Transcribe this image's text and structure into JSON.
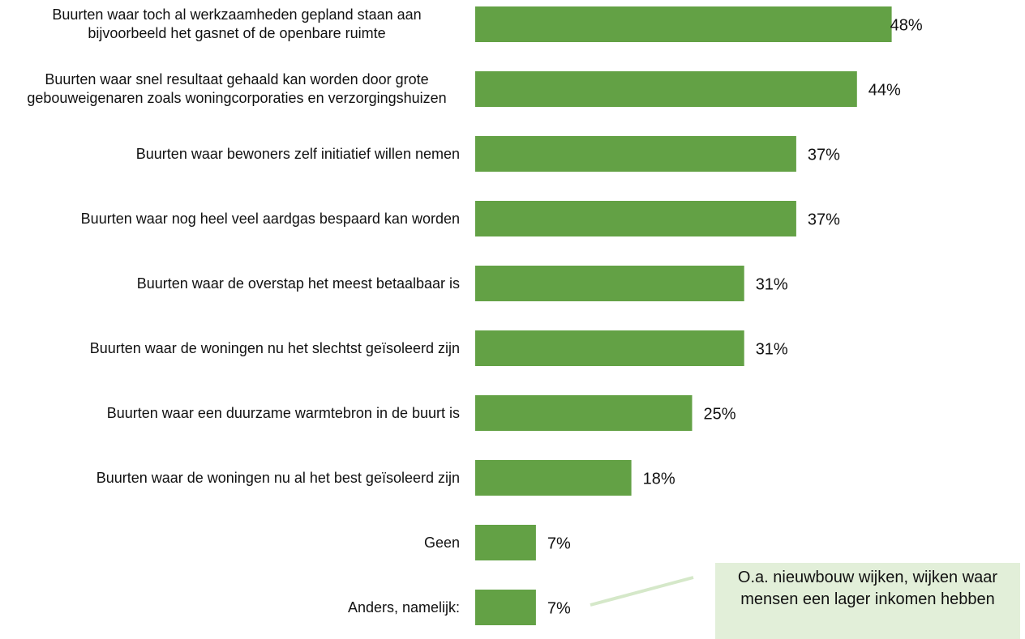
{
  "chart_data": {
    "type": "barh",
    "categories": [
      "Buurten waar toch al werkzaamheden gepland staan aan bijvoorbeeld het gasnet of de openbare ruimte",
      "Buurten waar snel resultaat gehaald kan worden door grote gebouweigenaren zoals woningcorporaties en verzorgingshuizen",
      "Buurten waar bewoners zelf initiatief willen nemen",
      "Buurten waar nog heel veel aardgas bespaard kan worden",
      "Buurten waar de overstap het meest betaalbaar is",
      "Buurten waar de woningen nu het slechtst geïsoleerd zijn",
      "Buurten waar een duurzame warmtebron in de buurt is",
      "Buurten waar de woningen nu al het best geïsoleerd zijn",
      "Geen",
      "Anders, namelijk:"
    ],
    "values": [
      48,
      44,
      37,
      37,
      31,
      31,
      25,
      18,
      7,
      7
    ],
    "value_labels": [
      "48%",
      "44%",
      "37%",
      "37%",
      "31%",
      "31%",
      "25%",
      "18%",
      "7%",
      "7%"
    ],
    "color": "#63a145",
    "xlim": [
      0,
      50
    ],
    "annotation": "O.a. nieuwbouw wijken, wijken waar mensen een lager inkomen hebben"
  }
}
